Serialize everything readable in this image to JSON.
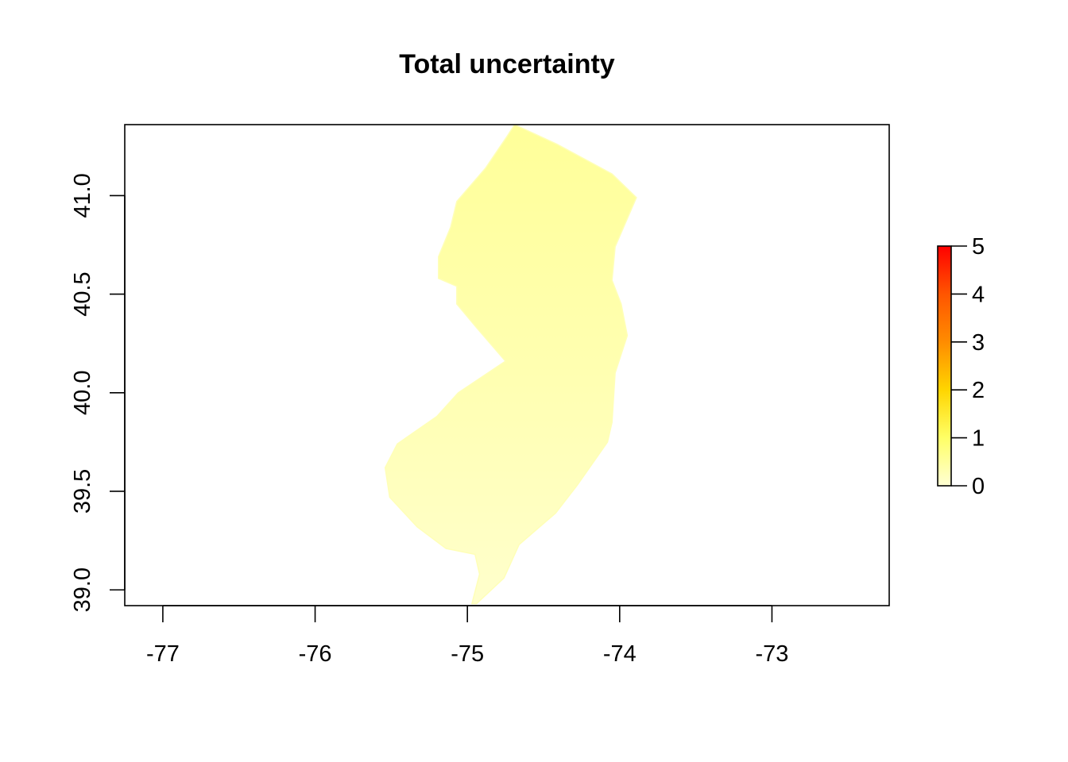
{
  "title": "Total uncertainty",
  "chart_data": {
    "type": "heatmap",
    "title": "Total uncertainty",
    "xlabel": "",
    "ylabel": "",
    "x_ticks": [
      -77,
      -76,
      -75,
      -74,
      -73
    ],
    "x_tick_labels": [
      "-77",
      "-76",
      "-75",
      "-74",
      "-73"
    ],
    "y_ticks": [
      39.0,
      39.5,
      40.0,
      40.5,
      41.0
    ],
    "y_tick_labels": [
      "39.0",
      "39.5",
      "40.0",
      "40.5",
      "41.0"
    ],
    "xlim": [
      -77.25,
      -72.23
    ],
    "ylim": [
      38.92,
      41.36
    ],
    "legend": {
      "type": "colorbar",
      "placement": "right",
      "min": 0,
      "max": 5,
      "ticks": [
        0,
        1,
        2,
        3,
        4,
        5
      ],
      "tick_labels": [
        "0",
        "1",
        "2",
        "3",
        "4",
        "5"
      ],
      "colors": [
        "#FFFFD4",
        "#FFFF66",
        "#FFD500",
        "#FF8C00",
        "#FF5500",
        "#FF0000"
      ]
    },
    "region": "New Jersey",
    "value_range_shown": [
      0.1,
      0.6
    ],
    "fill_colors": [
      "#FFFFCC",
      "#FFFFB0",
      "#FFFF99"
    ],
    "boundary": [
      [
        -74.69,
        41.36
      ],
      [
        -74.41,
        41.26
      ],
      [
        -74.05,
        41.11
      ],
      [
        -73.89,
        40.99
      ],
      [
        -74.03,
        40.74
      ],
      [
        -74.05,
        40.57
      ],
      [
        -73.99,
        40.45
      ],
      [
        -73.95,
        40.29
      ],
      [
        -74.03,
        40.1
      ],
      [
        -74.05,
        39.85
      ],
      [
        -74.08,
        39.75
      ],
      [
        -74.28,
        39.53
      ],
      [
        -74.42,
        39.39
      ],
      [
        -74.66,
        39.23
      ],
      [
        -74.76,
        39.06
      ],
      [
        -74.94,
        38.93
      ],
      [
        -74.97,
        38.93
      ],
      [
        -74.92,
        39.08
      ],
      [
        -74.95,
        39.18
      ],
      [
        -75.14,
        39.21
      ],
      [
        -75.33,
        39.32
      ],
      [
        -75.51,
        39.47
      ],
      [
        -75.54,
        39.62
      ],
      [
        -75.46,
        39.74
      ],
      [
        -75.2,
        39.88
      ],
      [
        -75.06,
        40.0
      ],
      [
        -74.75,
        40.16
      ],
      [
        -74.94,
        40.33
      ],
      [
        -75.07,
        40.45
      ],
      [
        -75.07,
        40.54
      ],
      [
        -75.19,
        40.58
      ],
      [
        -75.19,
        40.69
      ],
      [
        -75.11,
        40.84
      ],
      [
        -75.07,
        40.97
      ],
      [
        -74.88,
        41.14
      ],
      [
        -74.74,
        41.3
      ]
    ]
  }
}
